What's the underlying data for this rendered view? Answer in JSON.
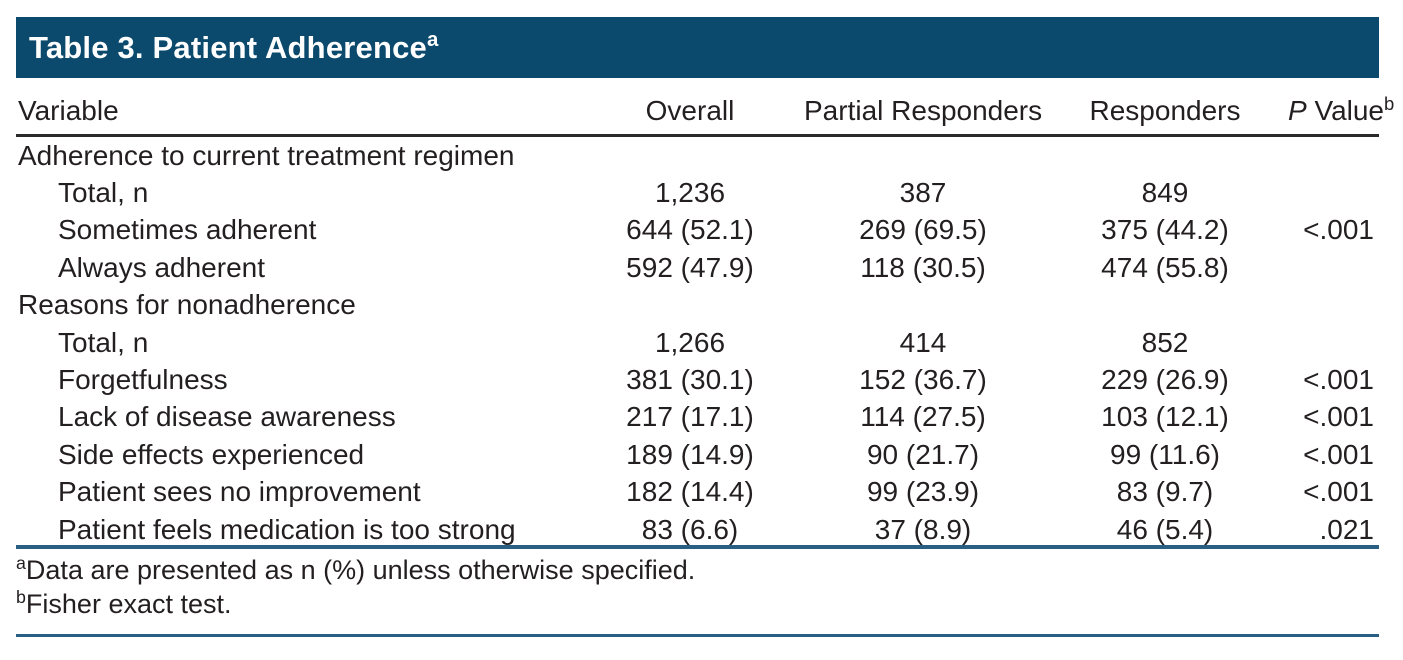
{
  "title": {
    "text": "Table 3. Patient Adherence",
    "superscript": "a"
  },
  "columns": {
    "variable": "Variable",
    "overall": "Overall",
    "partial_responders": "Partial Responders",
    "responders": "Responders",
    "p_value_italic": "P",
    "p_value_rest": " Value",
    "p_value_superscript": "b"
  },
  "sections": [
    {
      "header": "Adherence to current treatment regimen",
      "rows": [
        {
          "label": "Total, n",
          "overall": "1,236",
          "partial_responders": "387",
          "responders": "849",
          "p_value": ""
        },
        {
          "label": "Sometimes adherent",
          "overall": "644 (52.1)",
          "partial_responders": "269 (69.5)",
          "responders": "375 (44.2)",
          "p_value": "<.001"
        },
        {
          "label": "Always adherent",
          "overall": "592 (47.9)",
          "partial_responders": "118 (30.5)",
          "responders": "474 (55.8)",
          "p_value": ""
        }
      ]
    },
    {
      "header": "Reasons for nonadherence",
      "rows": [
        {
          "label": "Total, n",
          "overall": "1,266",
          "partial_responders": "414",
          "responders": "852",
          "p_value": ""
        },
        {
          "label": "Forgetfulness",
          "overall": "381 (30.1)",
          "partial_responders": "152 (36.7)",
          "responders": "229 (26.9)",
          "p_value": "<.001"
        },
        {
          "label": "Lack of disease awareness",
          "overall": "217 (17.1)",
          "partial_responders": "114 (27.5)",
          "responders": "103 (12.1)",
          "p_value": "<.001"
        },
        {
          "label": "Side effects experienced",
          "overall": "189 (14.9)",
          "partial_responders": "90 (21.7)",
          "responders": "99 (11.6)",
          "p_value": "<.001"
        },
        {
          "label": "Patient sees no improvement",
          "overall": "182 (14.4)",
          "partial_responders": "99 (23.9)",
          "responders": "83 (9.7)",
          "p_value": "<.001"
        },
        {
          "label": "Patient feels medication is too strong",
          "overall": "83 (6.6)",
          "partial_responders": "37 (8.9)",
          "responders": "46 (5.4)",
          "p_value": ".021"
        }
      ]
    }
  ],
  "footnotes": [
    {
      "marker": "a",
      "text": "Data are presented as n (%) unless otherwise specified."
    },
    {
      "marker": "b",
      "text": "Fisher exact test."
    }
  ],
  "colors": {
    "title_bar": "#0b4a6d",
    "blue_rule": "#2a5f84",
    "header_rule": "#2b2a29",
    "text": "#231f20"
  }
}
